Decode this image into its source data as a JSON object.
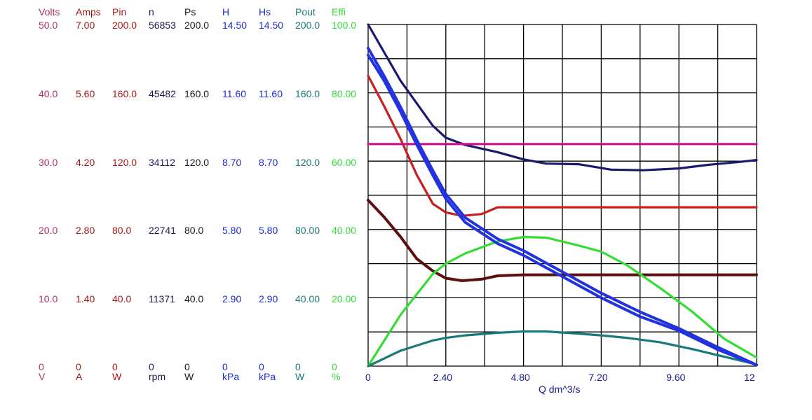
{
  "axes_columns": [
    {
      "header": "Volts",
      "ticks": [
        "50.0",
        "40.0",
        "30.0",
        "20.0",
        "10.0",
        "0"
      ],
      "unit": "V",
      "color": "#b0306a"
    },
    {
      "header": "Amps",
      "ticks": [
        "7.00",
        "5.60",
        "4.20",
        "2.80",
        "1.40",
        "0"
      ],
      "unit": "A",
      "color": "#a01818"
    },
    {
      "header": "Pin",
      "ticks": [
        "200.0",
        "160.0",
        "120.0",
        "80.0",
        "40.0",
        "0"
      ],
      "unit": "W",
      "color": "#b01818"
    },
    {
      "header": "n",
      "ticks": [
        "56853",
        "45482",
        "34112",
        "22741",
        "11371",
        "0"
      ],
      "unit": "rpm",
      "color": "#1a1a50"
    },
    {
      "header": "Ps",
      "ticks": [
        "200.0",
        "160.0",
        "120.0",
        "80.0",
        "40.0",
        "0"
      ],
      "unit": "W",
      "color": "#1a1a1a"
    },
    {
      "header": "H",
      "ticks": [
        "14.50",
        "11.60",
        "8.70",
        "5.80",
        "2.90",
        "0"
      ],
      "unit": "kPa",
      "color": "#1f2ed0"
    },
    {
      "header": "Hs",
      "ticks": [
        "14.50",
        "11.60",
        "8.70",
        "5.80",
        "2.90",
        "0"
      ],
      "unit": "kPa",
      "color": "#1f2ed0"
    },
    {
      "header": "Pout",
      "ticks": [
        "200.0",
        "160.0",
        "120.0",
        "80.00",
        "40.00",
        "0"
      ],
      "unit": "W",
      "color": "#1a7a7a"
    },
    {
      "header": "Effi",
      "ticks": [
        "100.0",
        "80.00",
        "60.00",
        "40.00",
        "20.00",
        "0"
      ],
      "unit": "%",
      "color": "#33dd33"
    }
  ],
  "chart_data": {
    "type": "line",
    "xlabel": "Q  dm^3/s",
    "x_ticks": [
      "0",
      "2.40",
      "4.80",
      "7.20",
      "9.60",
      "12"
    ],
    "xlim": [
      0,
      12
    ],
    "ylim_percent_of_scale": [
      0,
      100
    ],
    "grid": true,
    "series": [
      {
        "name": "n",
        "unit": "rpm",
        "color": "#1a1a6e",
        "x": [
          0,
          1,
          2,
          2.4,
          3,
          4,
          4.8,
          5.5,
          6.5,
          7.5,
          8.5,
          9.6,
          10.5,
          11.5,
          12
        ],
        "y": [
          56853,
          47500,
          40000,
          38000,
          36800,
          35600,
          34400,
          33700,
          33600,
          32700,
          32600,
          32900,
          33500,
          34000,
          34300
        ]
      },
      {
        "name": "Pin",
        "unit": "W",
        "color": "#c81e1e",
        "x": [
          0,
          0.5,
          1,
          1.5,
          2,
          2.4,
          2.9,
          3.5,
          4.0,
          5,
          6,
          8,
          10,
          12
        ],
        "y": [
          170,
          152,
          133,
          112,
          95,
          90,
          88,
          89,
          93,
          93,
          93,
          93,
          93,
          93
        ]
      },
      {
        "name": "H",
        "unit": "kPa",
        "color": "#2233dd",
        "x": [
          0,
          0.5,
          1,
          1.5,
          2,
          2.4,
          3,
          4,
          4.8,
          6,
          7.2,
          8.4,
          9.6,
          10.8,
          12
        ],
        "y": [
          13.5,
          12.3,
          11.0,
          9.6,
          8.3,
          7.3,
          6.3,
          5.4,
          4.9,
          4.0,
          3.1,
          2.3,
          1.6,
          0.8,
          0.05
        ]
      },
      {
        "name": "Hs",
        "unit": "kPa",
        "color": "#2233dd",
        "x": [
          0,
          0.5,
          1,
          1.5,
          2,
          2.4,
          3,
          4,
          4.8,
          6,
          7.2,
          8.4,
          9.6,
          10.8,
          12
        ],
        "y": [
          13.2,
          12.1,
          10.8,
          9.4,
          8.1,
          7.1,
          6.1,
          5.2,
          4.7,
          3.8,
          2.9,
          2.1,
          1.5,
          0.7,
          0.05
        ]
      },
      {
        "name": "Amps",
        "unit": "A",
        "color": "#5a1010",
        "x": [
          0,
          0.5,
          1,
          1.5,
          2,
          2.4,
          2.9,
          3.5,
          4,
          4.8,
          6,
          8,
          10,
          12
        ],
        "y": [
          3.4,
          3.05,
          2.65,
          2.2,
          1.95,
          1.8,
          1.75,
          1.78,
          1.85,
          1.87,
          1.87,
          1.87,
          1.87,
          1.87
        ]
      },
      {
        "name": "Volts",
        "unit": "V",
        "color": "#cc1188",
        "x": [
          0,
          12
        ],
        "y": [
          32.5,
          32.5
        ]
      },
      {
        "name": "Effi",
        "unit": "%",
        "color": "#33dd33",
        "x": [
          0,
          1,
          2,
          2.4,
          3,
          4,
          4.8,
          5.5,
          6.5,
          7.2,
          8,
          9,
          10,
          11,
          12
        ],
        "y": [
          0,
          15,
          27,
          30,
          33,
          36.5,
          37.8,
          37.6,
          35.3,
          33.5,
          29.5,
          23,
          16,
          8,
          2.5
        ]
      },
      {
        "name": "Pout",
        "unit": "W",
        "color": "#1a7a7a",
        "x": [
          0,
          1,
          2,
          2.4,
          3,
          4,
          4.8,
          5.5,
          6.5,
          7.2,
          8,
          9,
          10,
          11,
          12
        ],
        "y": [
          0,
          9,
          15,
          16.5,
          18,
          19.5,
          20.3,
          20.3,
          19,
          18,
          16.5,
          14,
          10,
          5.5,
          1
        ]
      }
    ]
  }
}
